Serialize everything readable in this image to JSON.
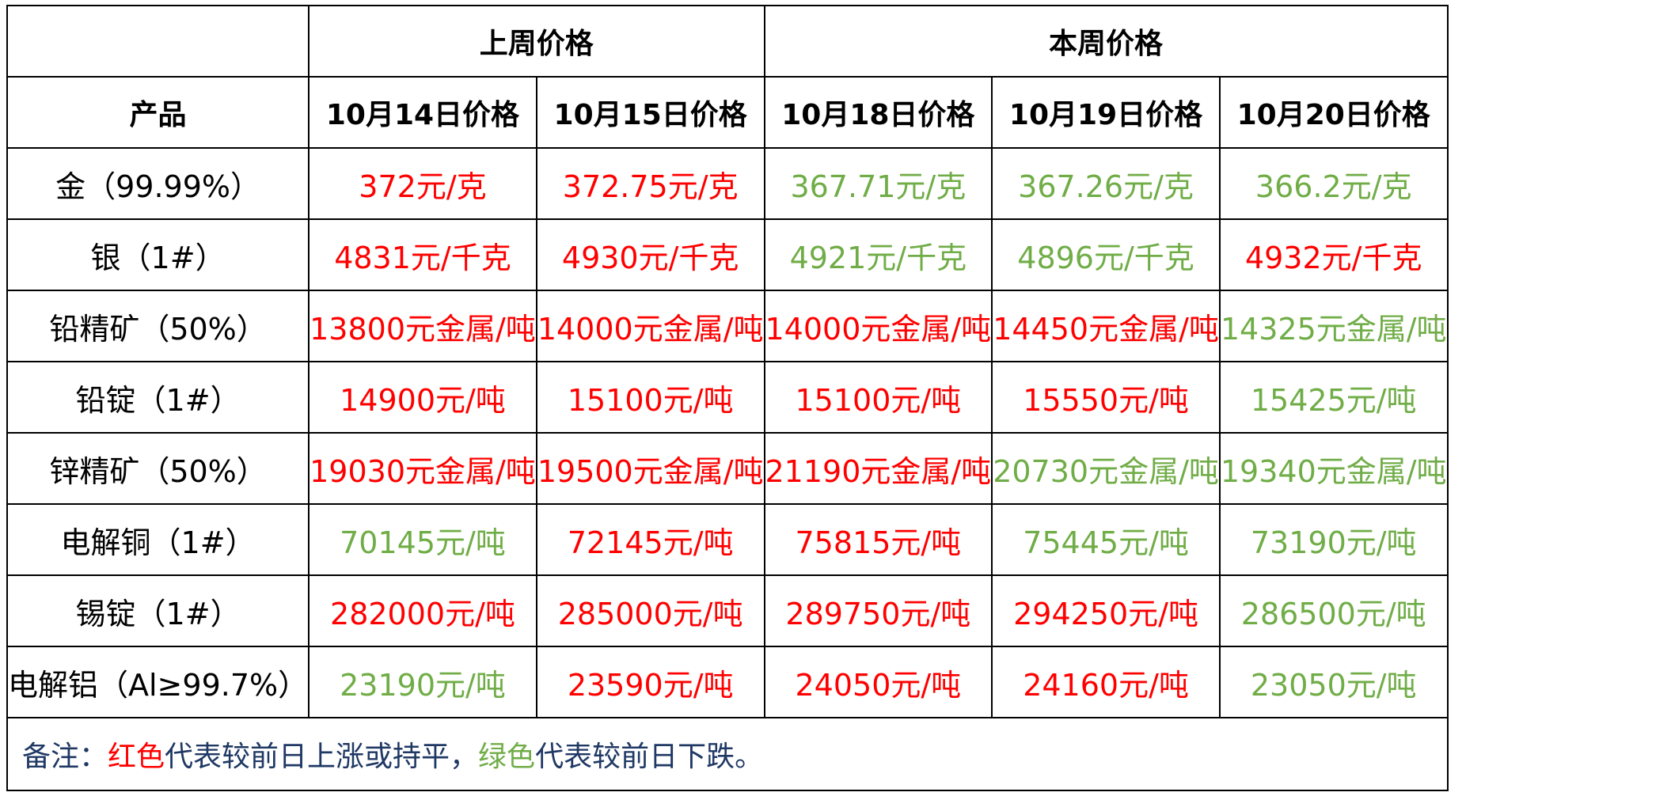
{
  "header": {
    "top_left": "",
    "group_last_week": "上周价格",
    "group_this_week": "本周价格",
    "product_label": "产品",
    "dates": [
      "10月14日价格",
      "10月15日价格",
      "10月18日价格",
      "10月19日价格",
      "10月20日价格"
    ]
  },
  "colors": {
    "up": "#ff0000",
    "down": "#70ad47",
    "note": "#1f3864"
  },
  "rows": [
    {
      "product": "金（99.99%）",
      "cells": [
        {
          "text": "372元/克",
          "trend": "up"
        },
        {
          "text": "372.75元/克",
          "trend": "up"
        },
        {
          "text": "367.71元/克",
          "trend": "down"
        },
        {
          "text": "367.26元/克",
          "trend": "down"
        },
        {
          "text": "366.2元/克",
          "trend": "down"
        }
      ]
    },
    {
      "product": "银（1#）",
      "cells": [
        {
          "text": "4831元/千克",
          "trend": "up"
        },
        {
          "text": "4930元/千克",
          "trend": "up"
        },
        {
          "text": "4921元/千克",
          "trend": "down"
        },
        {
          "text": "4896元/千克",
          "trend": "down"
        },
        {
          "text": "4932元/千克",
          "trend": "up"
        }
      ]
    },
    {
      "product": "铅精矿（50%）",
      "cells": [
        {
          "text": "13800元金属/吨",
          "trend": "up"
        },
        {
          "text": "14000元金属/吨",
          "trend": "up"
        },
        {
          "text": "14000元金属/吨",
          "trend": "up"
        },
        {
          "text": "14450元金属/吨",
          "trend": "up"
        },
        {
          "text": "14325元金属/吨",
          "trend": "down"
        }
      ]
    },
    {
      "product": "铅锭（1#）",
      "cells": [
        {
          "text": "14900元/吨",
          "trend": "up"
        },
        {
          "text": "15100元/吨",
          "trend": "up"
        },
        {
          "text": "15100元/吨",
          "trend": "up"
        },
        {
          "text": "15550元/吨",
          "trend": "up"
        },
        {
          "text": "15425元/吨",
          "trend": "down"
        }
      ]
    },
    {
      "product": "锌精矿（50%）",
      "cells": [
        {
          "text": "19030元金属/吨",
          "trend": "up"
        },
        {
          "text": "19500元金属/吨",
          "trend": "up"
        },
        {
          "text": "21190元金属/吨",
          "trend": "up"
        },
        {
          "text": "20730元金属/吨",
          "trend": "down"
        },
        {
          "text": "19340元金属/吨",
          "trend": "down"
        }
      ]
    },
    {
      "product": "电解铜（1#）",
      "cells": [
        {
          "text": "70145元/吨",
          "trend": "down"
        },
        {
          "text": "72145元/吨",
          "trend": "up"
        },
        {
          "text": "75815元/吨",
          "trend": "up"
        },
        {
          "text": "75445元/吨",
          "trend": "down"
        },
        {
          "text": "73190元/吨",
          "trend": "down"
        }
      ]
    },
    {
      "product": "锡锭（1#）",
      "cells": [
        {
          "text": "282000元/吨",
          "trend": "up"
        },
        {
          "text": "285000元/吨",
          "trend": "up"
        },
        {
          "text": "289750元/吨",
          "trend": "up"
        },
        {
          "text": "294250元/吨",
          "trend": "up"
        },
        {
          "text": "286500元/吨",
          "trend": "down"
        }
      ]
    },
    {
      "product": "电解铝（Al≥99.7%）",
      "cells": [
        {
          "text": "23190元/吨",
          "trend": "down"
        },
        {
          "text": "23590元/吨",
          "trend": "up"
        },
        {
          "text": "24050元/吨",
          "trend": "up"
        },
        {
          "text": "24160元/吨",
          "trend": "up"
        },
        {
          "text": "23050元/吨",
          "trend": "down"
        }
      ]
    }
  ],
  "note": {
    "prefix": "备注：",
    "red_word": "红色",
    "red_text": "代表较前日上涨或持平，",
    "green_word": "绿色",
    "green_text": "代表较前日下跌。"
  }
}
